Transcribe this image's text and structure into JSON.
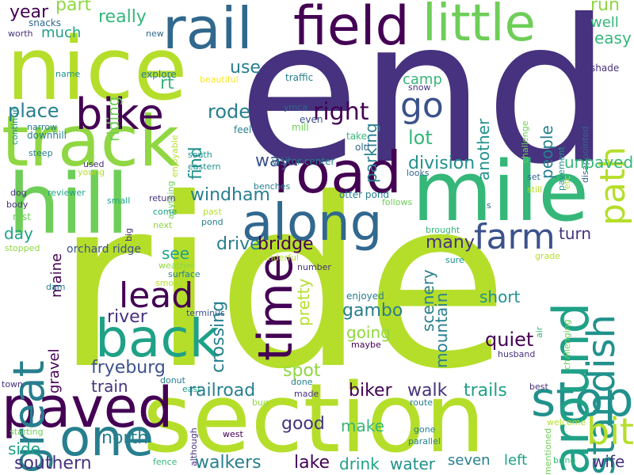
{
  "palette": {
    "dark_purple": "#46327e",
    "purple": "#440154",
    "indigo": "#3b528b",
    "blue": "#31688e",
    "teal_blue": "#277f8e",
    "teal": "#21918c",
    "green_teal": "#1fa187",
    "green": "#35b779",
    "light_green": "#6ece58",
    "lime": "#90d743",
    "yellow_green": "#b5de2b",
    "yellow": "#fde725"
  },
  "words": {
    "end": "end",
    "ride": "ride",
    "nice": "nice",
    "track": "track",
    "section": "section",
    "mile": "mile",
    "hill": "hill",
    "road": "road",
    "rail": "rail",
    "field": "field",
    "little": "little",
    "along": "along",
    "bike": "bike",
    "paved": "paved",
    "back": "back",
    "time": "time",
    "great": "great",
    "one": "one",
    "stop": "stop",
    "around": "around",
    "standish": "standish",
    "path": "path",
    "farm": "farm",
    "go": "go",
    "lead": "lead",
    "bit": "bit",
    "right": "right",
    "year": "year",
    "part": "part",
    "really": "really",
    "much": "much",
    "snacks": "snacks",
    "worth": "worth",
    "new": "new",
    "run": "run",
    "well": "well",
    "easy": "easy",
    "shade": "shade",
    "use": "use",
    "rt": "rt",
    "explore": "explore",
    "name": "name",
    "beautiful": "beautiful",
    "riding": "riding",
    "traffic": "traffic",
    "parking": "parking",
    "camp": "camp",
    "snow": "snow",
    "place": "place",
    "rode": "rode",
    "ymca": "ymca",
    "continue": "continue",
    "narrow": "narrow",
    "downhill": "downhill",
    "steep": "steep",
    "enjoyable": "enjoyable",
    "find": "find",
    "feel": "feel",
    "even": "even",
    "mill": "mill",
    "challenge": "challenge",
    "pavement": "pavement",
    "disappointed": "disappointed",
    "another": "another",
    "people": "people",
    "lot": "lot",
    "take": "take",
    "old": "old",
    "used": "used",
    "young": "young",
    "south": "south",
    "eastern": "eastern",
    "anything": "anything",
    "visitor_center": "visitor center",
    "way": "way",
    "division": "division",
    "looks": "looks",
    "unpaved": "unpaved",
    "etc": "etc",
    "dog": "dog",
    "body": "body",
    "reviewer": "reviewer",
    "small": "small",
    "big": "big",
    "return": "return",
    "come": "come",
    "windham": "windham",
    "benches": "benches",
    "otter_pond": "otter pond",
    "follows": "follows",
    "set": "set",
    "still": "still",
    "rest": "rest",
    "day": "day",
    "past": "past",
    "pond": "pond",
    "s": "s",
    "stopped": "stopped",
    "next": "next",
    "drive": "drive",
    "brought": "brought",
    "turn": "turn",
    "grade": "grade",
    "orchard_ridge": "orchard ridge",
    "bridge": "bridge",
    "maine": "maine",
    "see": "see",
    "wonderful": "wonderful",
    "many": "many",
    "sure": "sure",
    "weather": "weather",
    "number": "number",
    "surface": "surface",
    "smooth": "smooth",
    "pretty": "pretty",
    "scenery": "scenery",
    "mountain": "mountain",
    "dam": "dam",
    "enjoyed": "enjoyed",
    "short": "short",
    "river": "river",
    "terminus": "terminus",
    "gambo": "gambo",
    "crossing": "crossing",
    "quiet": "quiet",
    "going": "going",
    "maybe": "maybe",
    "air": "air",
    "challenging": "challenging",
    "husband": "husband",
    "gravel": "gravel",
    "fryeburg": "fryeburg",
    "spot": "spot",
    "done": "done",
    "town": "town",
    "donut": "donut",
    "east": "east",
    "train": "train",
    "biker": "biker",
    "walk": "walk",
    "trails": "trails",
    "best": "best",
    "railroad": "railroad",
    "made": "made",
    "route": "route",
    "bug": "bug",
    "mentioned": "mentioned",
    "starting": "starting",
    "although": "although",
    "good": "good",
    "make": "make",
    "gone": "gone",
    "welcome": "welcome",
    "side": "side",
    "west": "west",
    "parallel": "parallel",
    "north": "north",
    "seven": "seven",
    "left": "left",
    "southern": "southern",
    "walkers": "walkers",
    "lake": "lake",
    "drink": "drink",
    "water": "water",
    "fence": "fence",
    "bring": "bring",
    "wife": "wife"
  }
}
